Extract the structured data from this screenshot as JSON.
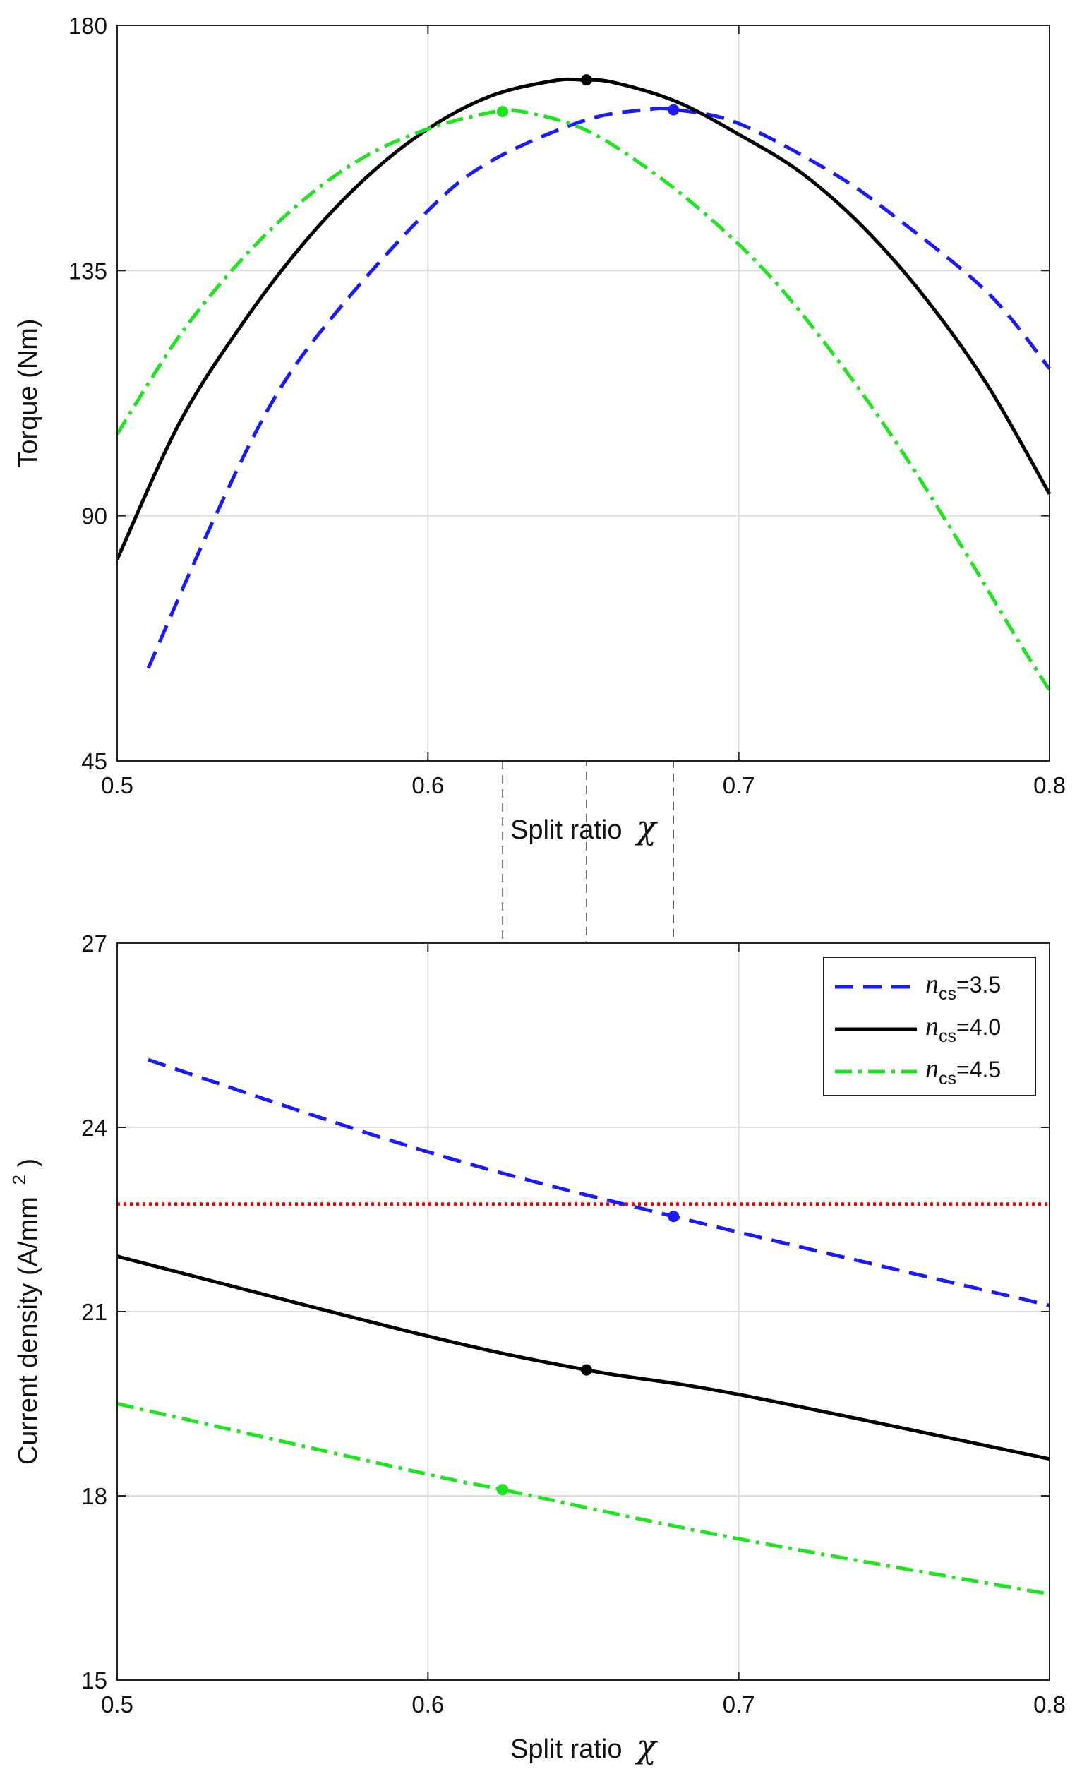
{
  "chart_data": [
    {
      "type": "line",
      "xlabel": "Split ratio",
      "xlabel_symbol": "χ",
      "ylabel": "Torque (Nm)",
      "xlim": [
        0.5,
        0.8
      ],
      "ylim": [
        45,
        180
      ],
      "xticks": [
        "0.5",
        "0.6",
        "0.7",
        "0.8"
      ],
      "yticks": [
        "45",
        "90",
        "135",
        "180"
      ],
      "grid": true,
      "series": [
        {
          "name": "n_cs=3.5",
          "color": "#1a1aff",
          "style": "dashed",
          "x": [
            0.51,
            0.53,
            0.55,
            0.57,
            0.6,
            0.62,
            0.65,
            0.67,
            0.68,
            0.7,
            0.73,
            0.75,
            0.78,
            0.8
          ],
          "y": [
            62,
            88,
            111,
            127,
            146,
            155,
            162.5,
            164.5,
            164.5,
            162,
            153,
            145,
            131,
            117
          ],
          "marker": {
            "x": 0.679,
            "y": 164.5
          }
        },
        {
          "name": "n_cs=4.0",
          "color": "#000000",
          "style": "solid",
          "x": [
            0.5,
            0.52,
            0.54,
            0.56,
            0.58,
            0.6,
            0.62,
            0.64,
            0.65,
            0.66,
            0.68,
            0.7,
            0.72,
            0.74,
            0.76,
            0.78,
            0.8
          ],
          "y": [
            82,
            107,
            125,
            140,
            152,
            161,
            167,
            169.8,
            170,
            169.5,
            166,
            160,
            153,
            143,
            130,
            114,
            94
          ],
          "marker": {
            "x": 0.651,
            "y": 170
          }
        },
        {
          "name": "n_cs=4.5",
          "color": "#1ee61e",
          "style": "dashdot",
          "x": [
            0.5,
            0.52,
            0.54,
            0.56,
            0.58,
            0.6,
            0.62,
            0.63,
            0.65,
            0.67,
            0.69,
            0.71,
            0.73,
            0.75,
            0.77,
            0.79,
            0.8
          ],
          "y": [
            105,
            123,
            137,
            148,
            156,
            161,
            164,
            164.2,
            161,
            154,
            145,
            134,
            120,
            104,
            86,
            67,
            58
          ],
          "marker": {
            "x": 0.624,
            "y": 164.2
          }
        }
      ],
      "guide_lines_x": [
        0.624,
        0.651,
        0.679
      ]
    },
    {
      "type": "line",
      "xlabel": "Split ratio",
      "xlabel_symbol": "χ",
      "ylabel": "Current density (A/mm",
      "ylabel_sup": "2",
      "ylabel_close": ")",
      "xlim": [
        0.5,
        0.8
      ],
      "ylim": [
        15,
        27
      ],
      "xticks": [
        "0.5",
        "0.6",
        "0.7",
        "0.8"
      ],
      "yticks": [
        "15",
        "18",
        "21",
        "24",
        "27"
      ],
      "grid": true,
      "legend_position": "top-right",
      "series": [
        {
          "name": "n_cs=3.5",
          "legend_n": "n",
          "legend_sub": "cs",
          "legend_val": "=3.5",
          "color": "#1a1aff",
          "style": "dashed",
          "x": [
            0.51,
            0.6,
            0.679,
            0.8
          ],
          "y": [
            25.1,
            23.6,
            22.55,
            21.1
          ],
          "marker": {
            "x": 0.679,
            "y": 22.55
          }
        },
        {
          "name": "n_cs=4.0",
          "legend_n": "n",
          "legend_sub": "cs",
          "legend_val": "=4.0",
          "color": "#000000",
          "style": "solid",
          "x": [
            0.5,
            0.6,
            0.651,
            0.7,
            0.8
          ],
          "y": [
            21.9,
            20.6,
            20.05,
            19.65,
            18.6
          ],
          "marker": {
            "x": 0.651,
            "y": 20.05
          }
        },
        {
          "name": "n_cs=4.5",
          "legend_n": "n",
          "legend_sub": "cs",
          "legend_val": "=4.5",
          "color": "#1ee61e",
          "style": "dashdot",
          "x": [
            0.5,
            0.6,
            0.624,
            0.7,
            0.8
          ],
          "y": [
            19.5,
            18.35,
            18.1,
            17.3,
            16.4
          ],
          "marker": {
            "x": 0.624,
            "y": 18.1
          }
        }
      ],
      "reference_line": {
        "y": 22.75,
        "color": "#ff0000",
        "style": "dotted"
      },
      "guide_lines_x": [
        0.624,
        0.651,
        0.679
      ]
    }
  ]
}
